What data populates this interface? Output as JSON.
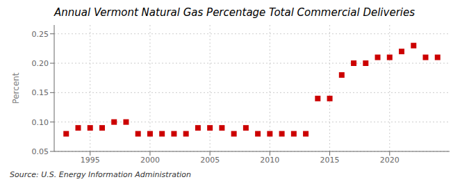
{
  "chart_data": {
    "type": "scatter",
    "title": "Annual Vermont Natural Gas Percentage Total Commercial Deliveries",
    "ylabel": "Percent",
    "source": "Source: U.S. Energy Information Administration",
    "x": [
      1993,
      1994,
      1995,
      1996,
      1997,
      1998,
      1999,
      2000,
      2001,
      2002,
      2003,
      2004,
      2005,
      2006,
      2007,
      2008,
      2009,
      2010,
      2011,
      2012,
      2013,
      2014,
      2015,
      2016,
      2017,
      2018,
      2019,
      2020,
      2021,
      2022,
      2023,
      2024
    ],
    "values": [
      0.08,
      0.09,
      0.09,
      0.09,
      0.1,
      0.1,
      0.08,
      0.08,
      0.08,
      0.08,
      0.08,
      0.09,
      0.09,
      0.09,
      0.08,
      0.09,
      0.08,
      0.08,
      0.08,
      0.08,
      0.08,
      0.14,
      0.14,
      0.18,
      0.2,
      0.2,
      0.21,
      0.21,
      0.22,
      0.23,
      0.21,
      0.21
    ],
    "color": "#cc0000",
    "marker": "square",
    "xlim": [
      1992.0,
      2025.0
    ],
    "xticks": [
      1995,
      2000,
      2005,
      2010,
      2015,
      2020
    ],
    "ylim": [
      0.05,
      0.265
    ],
    "yticks": [
      {
        "value": 0.05,
        "label": "0.05"
      },
      {
        "value": 0.1,
        "label": "0.10"
      },
      {
        "value": 0.15,
        "label": "0.15"
      },
      {
        "value": 0.2,
        "label": "0.20"
      },
      {
        "value": 0.25,
        "label": "0.25"
      }
    ],
    "grid": true
  }
}
